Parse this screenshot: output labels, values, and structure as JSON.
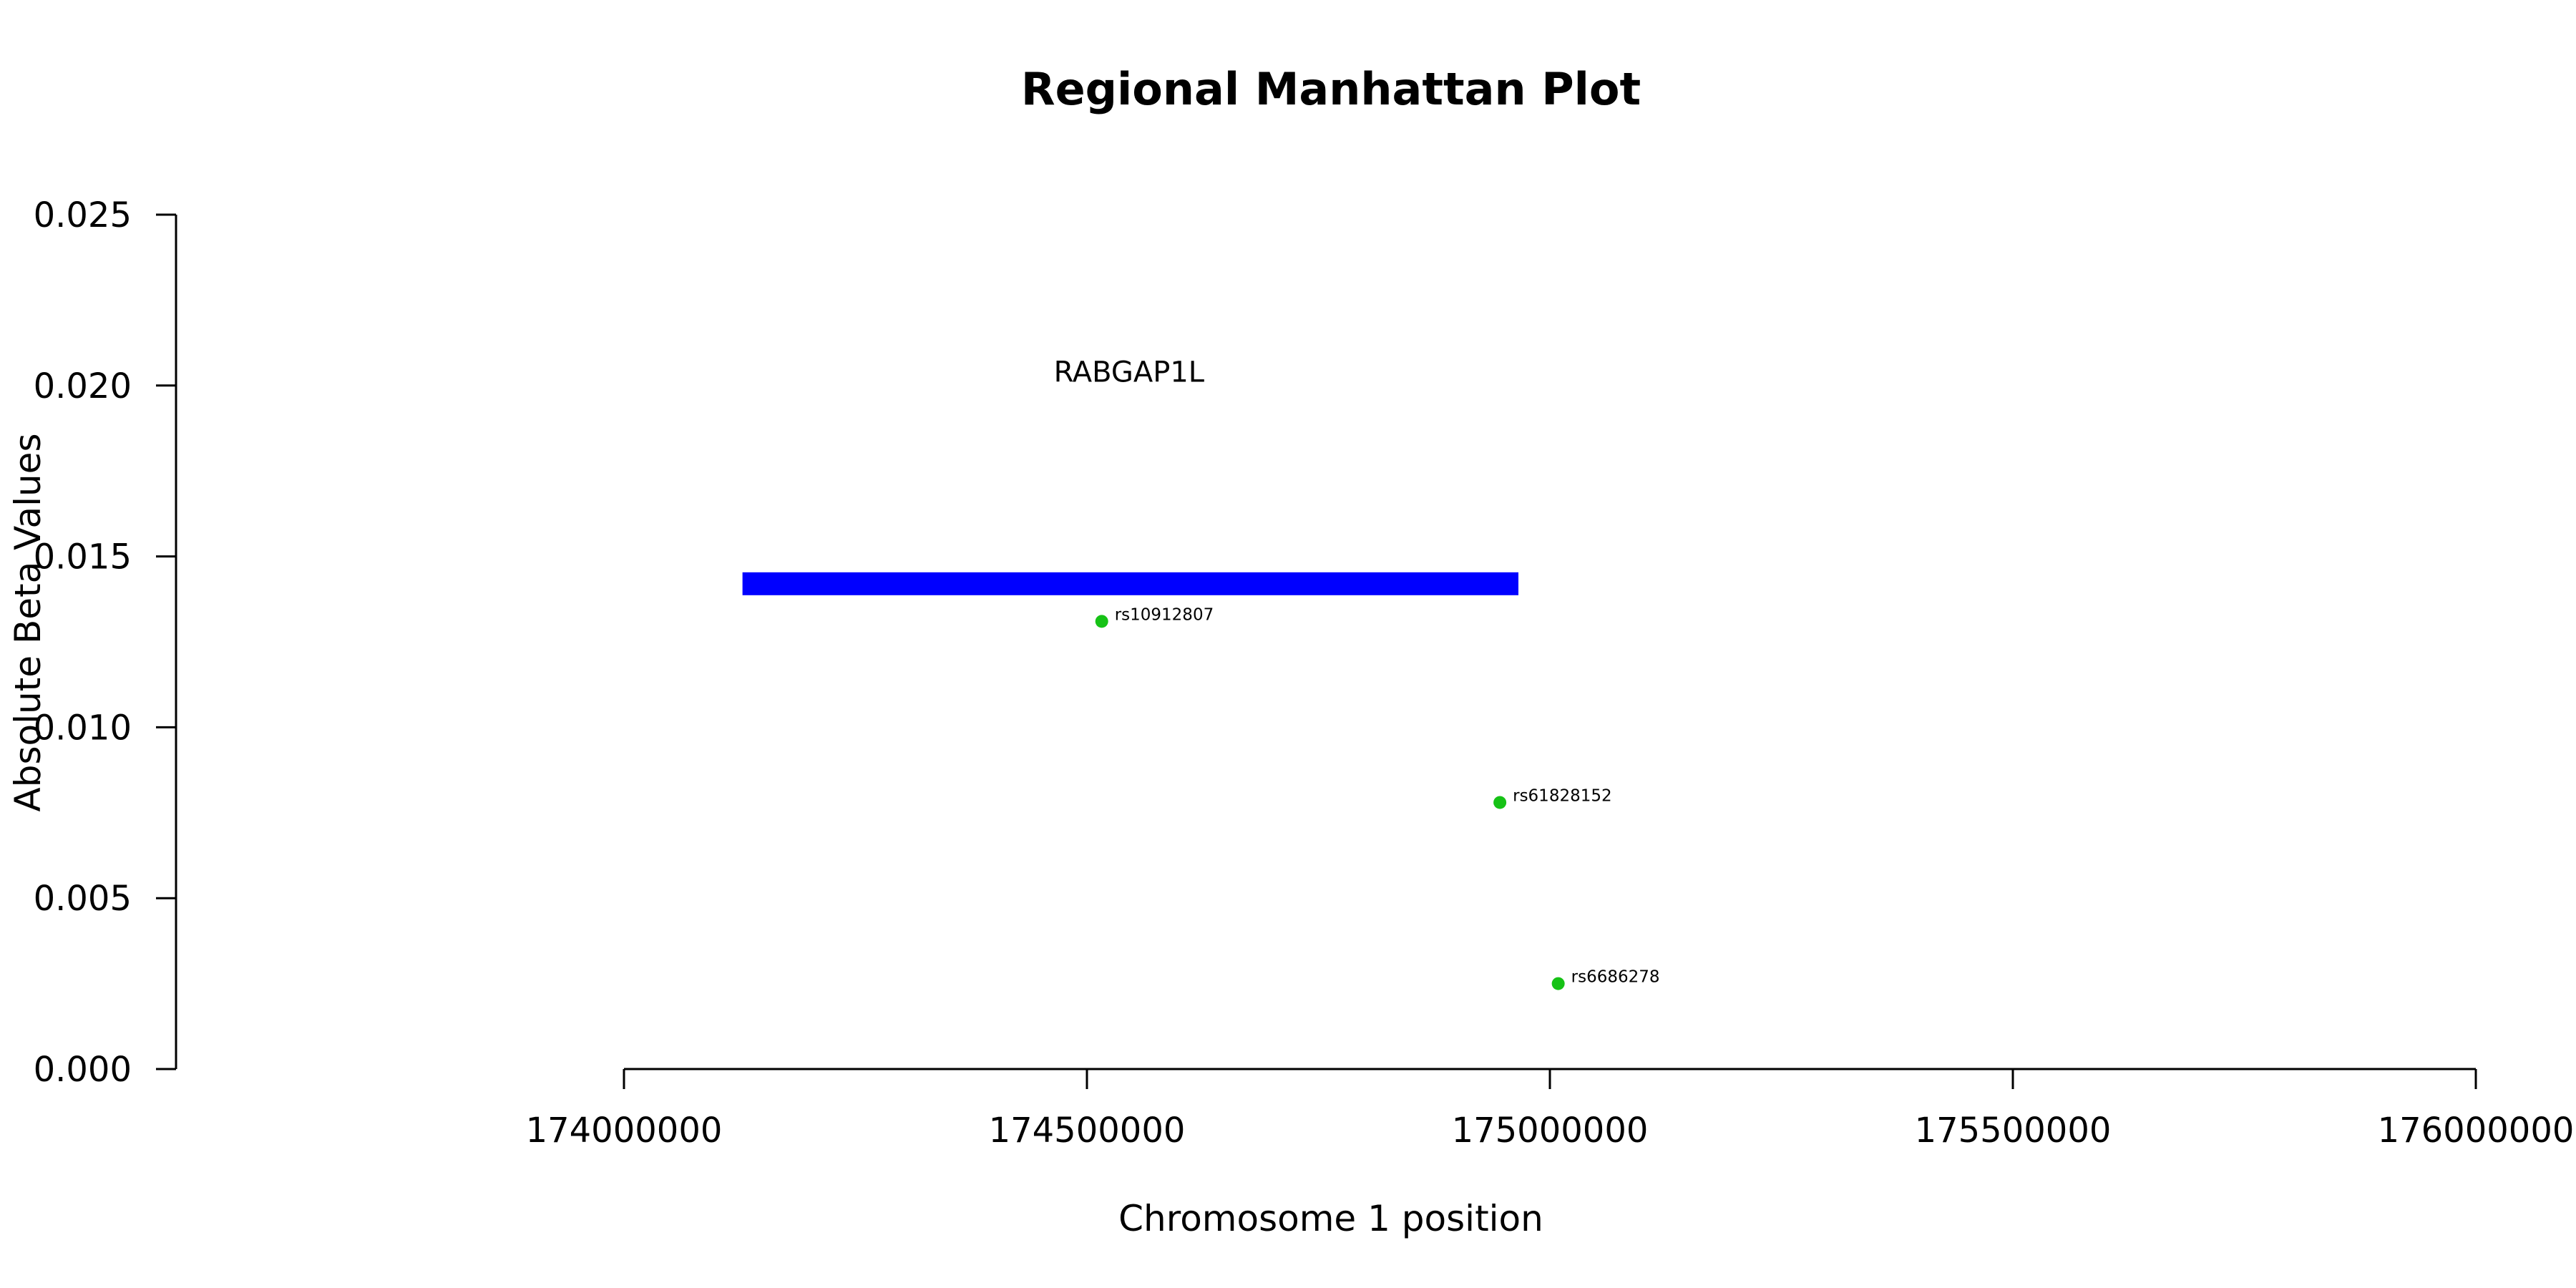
{
  "chart_data": {
    "type": "scatter",
    "title": "Regional Manhattan Plot",
    "xlabel": "Chromosome 1 position",
    "ylabel": "Absolute Beta Values",
    "xlim": [
      174000000,
      176000000
    ],
    "ylim": [
      0,
      0.025
    ],
    "x_ticks": [
      174000000,
      174500000,
      175000000,
      175500000,
      176000000
    ],
    "x_tick_labels": [
      "174000000",
      "174500000",
      "175000000",
      "175500000",
      "176000000"
    ],
    "y_ticks": [
      0,
      0.005,
      0.01,
      0.015,
      0.02,
      0.025
    ],
    "y_tick_labels": [
      "0.000",
      "0.005",
      "0.010",
      "0.015",
      "0.020",
      "0.025"
    ],
    "grid": false,
    "genes": [
      {
        "name": "RABGAP1L",
        "start": 174128000,
        "end": 174966000,
        "y": 0.0142,
        "label_y": 0.0204,
        "color": "#0000ff"
      }
    ],
    "points": [
      {
        "label": "rs10912807",
        "x": 174516000,
        "y": 0.0131
      },
      {
        "label": "rs61828152",
        "x": 174946000,
        "y": 0.0078
      },
      {
        "label": "rs6686278",
        "x": 175009000,
        "y": 0.0025
      }
    ],
    "point_color": "#16c216"
  }
}
